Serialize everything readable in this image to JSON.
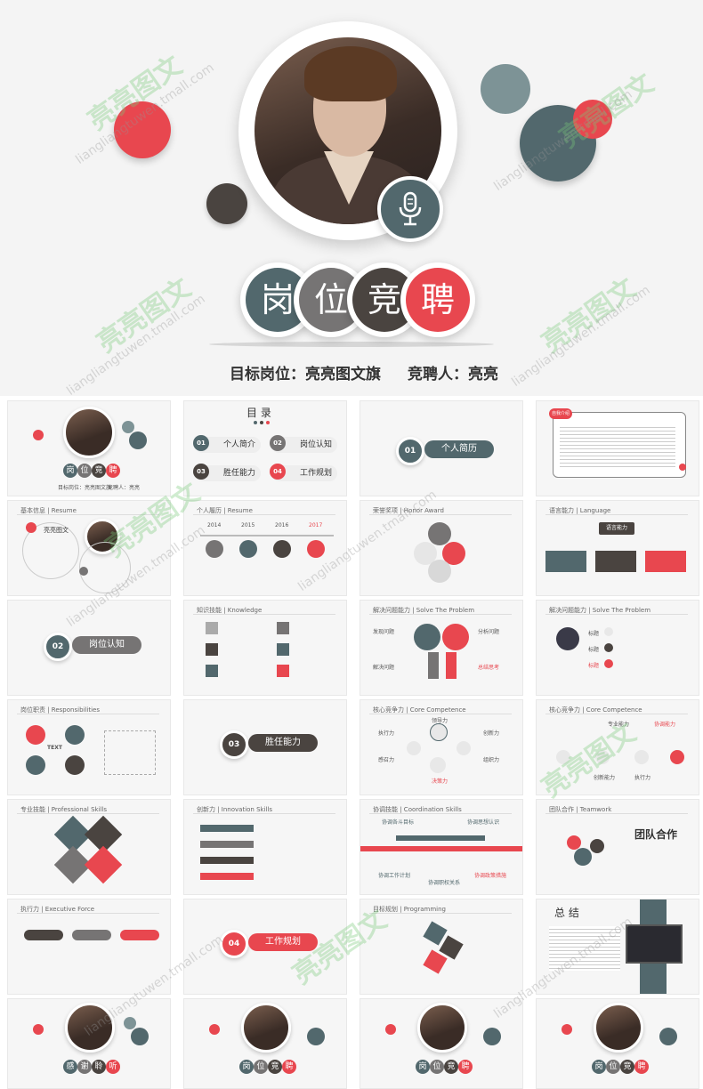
{
  "colors": {
    "red": "#e8474f",
    "teal": "#52686d",
    "dark": "#4a4440",
    "gray": "#767474",
    "brown": "#5b4a40",
    "lightteal": "#8da6a8"
  },
  "hero": {
    "title_chars": [
      "岗",
      "位",
      "竞",
      "聘"
    ],
    "target_position": "目标岗位：亮亮图文旗",
    "candidate": "竞聘人：亮亮",
    "mic_icon": "microphone-icon"
  },
  "watermark": {
    "brand": "亮亮图文",
    "url": "liangliangtuwen.tmall.com"
  },
  "thumbs": {
    "cover": {
      "chars": [
        "岗",
        "位",
        "竞",
        "聘"
      ],
      "footer_left": "目标岗位：亮亮图文旗",
      "footer_right": "竞聘人：亮亮"
    },
    "toc": {
      "title": "目 录",
      "items": [
        {
          "num": "01",
          "label": "个人简介"
        },
        {
          "num": "02",
          "label": "岗位认知"
        },
        {
          "num": "03",
          "label": "胜任能力"
        },
        {
          "num": "04",
          "label": "工作规划"
        }
      ]
    },
    "section1": {
      "num": "01",
      "label": "个人简历"
    },
    "self_intro": {
      "badge": "自我介绍"
    },
    "basic_info": {
      "header": "基本信息 | Resume",
      "name": "亮亮图文"
    },
    "resume": {
      "header": "个人履历 | Resume",
      "years": [
        "2014",
        "2015",
        "2016",
        "2017"
      ],
      "nodes": [
        "添加标题",
        "添加标题",
        "添加标题",
        "添加标题"
      ]
    },
    "honor": {
      "header": "荣誉奖项 | Honor Award"
    },
    "language": {
      "header": "语言能力 | Language",
      "top": "语言能力"
    },
    "section2": {
      "num": "02",
      "label": "岗位认知"
    },
    "knowledge": {
      "header": "知识技能 | Knowledge"
    },
    "solve1": {
      "header": "解决问题能力 | Solve The Problem",
      "labels": [
        "发现问题",
        "分析问题",
        "解决问题",
        "总结思考"
      ]
    },
    "solve2": {
      "header": "解决问题能力 | Solve The Problem",
      "labels": [
        "标题",
        "标题",
        "标题"
      ]
    },
    "responsibilities": {
      "header": "岗位职责 | Responsibilities",
      "center": "TEXT",
      "labels": [
        "决策力",
        "执行力",
        "协调力",
        "影响力",
        "创新力"
      ]
    },
    "section3": {
      "num": "03",
      "label": "胜任能力"
    },
    "core1": {
      "header": "核心竞争力 | Core Competence",
      "labels": [
        "执行力",
        "领导力",
        "创新力",
        "感召力",
        "组织力",
        "决策力"
      ]
    },
    "core2": {
      "header": "核心竞争力 | Core Competence",
      "labels": [
        "专业能力",
        "协调能力",
        "组织能力",
        "创新能力",
        "执行力"
      ]
    },
    "professional": {
      "header": "专业技能 | Professional Skills"
    },
    "innovation": {
      "header": "创新力 | Innovation Skills"
    },
    "coordination": {
      "header": "协调技能 | Coordination Skills",
      "labels": [
        "协调各斗目标",
        "协调思想认识",
        "协调工作计划",
        "协调职权关系",
        "协调政策措施"
      ]
    },
    "teamwork": {
      "header": "团队合作 | Teamwork",
      "title": "团队合作"
    },
    "executive": {
      "header": "执行力 | Executive Force"
    },
    "section4": {
      "num": "04",
      "label": "工作规划"
    },
    "programming": {
      "header": "目标规划 | Programming"
    },
    "summary": {
      "title": "总 结"
    },
    "thanks": {
      "chars": [
        "感",
        "谢",
        "聆",
        "听"
      ]
    },
    "end_covers": {
      "chars": [
        "岗",
        "位",
        "竞",
        "聘"
      ]
    }
  }
}
